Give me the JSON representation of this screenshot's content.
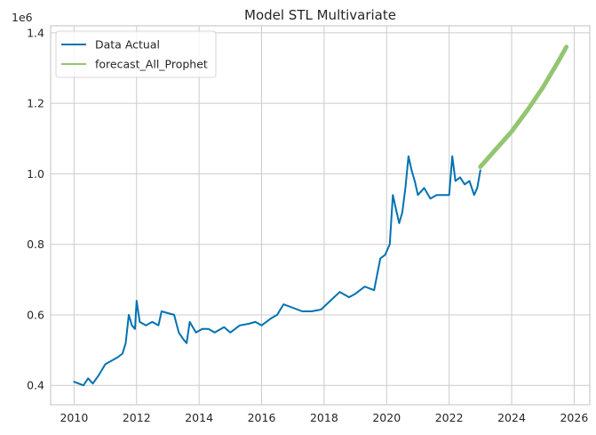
{
  "chart_data": {
    "type": "line",
    "title": "Model STL Multivariate",
    "xlabel": "",
    "ylabel": "",
    "y_scale_label": "1e6",
    "xlim": [
      2009.25,
      2026.5
    ],
    "ylim": [
      0.345,
      1.42
    ],
    "x_ticks": [
      2010,
      2012,
      2014,
      2016,
      2018,
      2020,
      2022,
      2024,
      2026
    ],
    "x_tick_labels": [
      "2010",
      "2012",
      "2014",
      "2016",
      "2018",
      "2020",
      "2022",
      "2024",
      "2026"
    ],
    "y_ticks": [
      0.4,
      0.6,
      0.8,
      1.0,
      1.2,
      1.4
    ],
    "y_tick_labels": [
      "0.4",
      "0.6",
      "0.8",
      "1.0",
      "1.2",
      "1.4"
    ],
    "grid": true,
    "legend_position": "top-left",
    "series": [
      {
        "name": "Data Actual",
        "color": "#0072b2",
        "x": [
          2010.0,
          2010.15,
          2010.3,
          2010.45,
          2010.6,
          2010.8,
          2011.0,
          2011.2,
          2011.4,
          2011.55,
          2011.65,
          2011.75,
          2011.85,
          2011.95,
          2012.0,
          2012.1,
          2012.3,
          2012.5,
          2012.7,
          2012.8,
          2013.0,
          2013.2,
          2013.35,
          2013.5,
          2013.6,
          2013.7,
          2013.9,
          2014.1,
          2014.3,
          2014.5,
          2014.8,
          2015.0,
          2015.3,
          2015.6,
          2015.8,
          2016.0,
          2016.3,
          2016.5,
          2016.7,
          2017.0,
          2017.3,
          2017.6,
          2017.9,
          2018.2,
          2018.5,
          2018.8,
          2019.0,
          2019.3,
          2019.6,
          2019.8,
          2019.95,
          2020.1,
          2020.2,
          2020.3,
          2020.4,
          2020.5,
          2020.6,
          2020.7,
          2020.8,
          2020.9,
          2021.0,
          2021.2,
          2021.4,
          2021.6,
          2021.8,
          2022.0,
          2022.1,
          2022.2,
          2022.35,
          2022.5,
          2022.65,
          2022.8,
          2022.9,
          2023.0
        ],
        "values": [
          0.41,
          0.405,
          0.4,
          0.42,
          0.405,
          0.43,
          0.46,
          0.47,
          0.48,
          0.49,
          0.52,
          0.6,
          0.57,
          0.56,
          0.64,
          0.58,
          0.57,
          0.58,
          0.57,
          0.61,
          0.605,
          0.6,
          0.55,
          0.53,
          0.52,
          0.58,
          0.55,
          0.56,
          0.56,
          0.55,
          0.565,
          0.55,
          0.57,
          0.575,
          0.58,
          0.57,
          0.59,
          0.6,
          0.63,
          0.62,
          0.61,
          0.61,
          0.615,
          0.64,
          0.665,
          0.65,
          0.66,
          0.68,
          0.67,
          0.76,
          0.77,
          0.8,
          0.94,
          0.9,
          0.86,
          0.89,
          0.96,
          1.05,
          1.01,
          0.98,
          0.94,
          0.96,
          0.93,
          0.94,
          0.94,
          0.94,
          1.05,
          0.98,
          0.99,
          0.97,
          0.98,
          0.94,
          0.96,
          1.01
        ]
      },
      {
        "name": "forecast_All_Prophet",
        "color": "#93c572",
        "x": [
          2023.0,
          2023.5,
          2024.0,
          2024.5,
          2025.0,
          2025.5,
          2025.75
        ],
        "values": [
          1.02,
          1.07,
          1.12,
          1.18,
          1.245,
          1.32,
          1.36
        ]
      }
    ]
  }
}
